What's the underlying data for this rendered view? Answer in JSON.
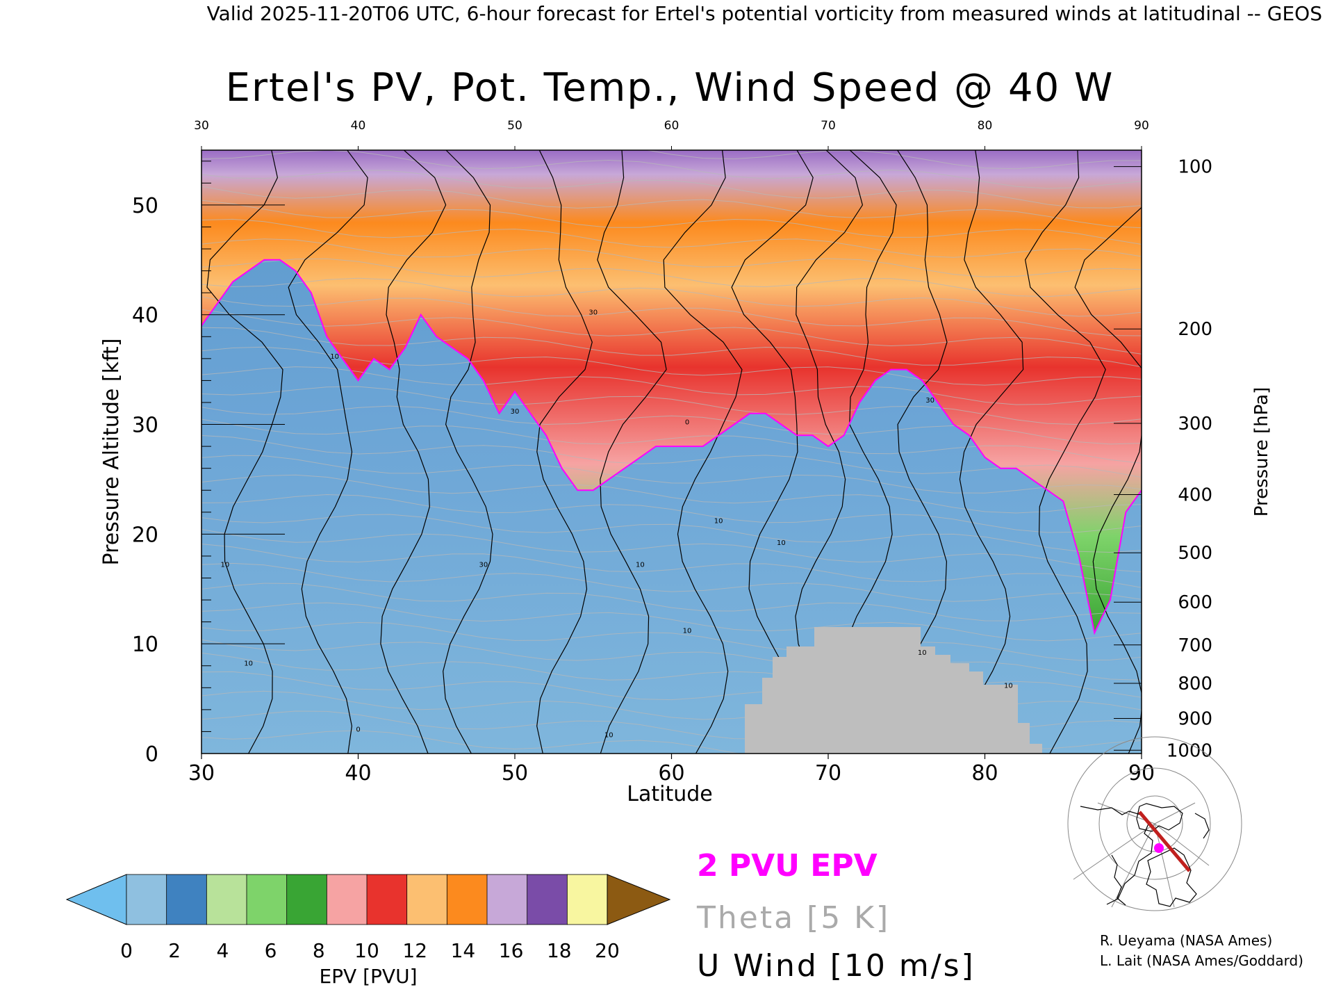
{
  "header": {
    "valid_line": "Valid 2025-11-20T06 UTC, 6-hour forecast for Ertel's potential vorticity from measured winds at latitudinal -- GEOS"
  },
  "chart_data": {
    "type": "heatmap",
    "title": "Ertel's PV, Pot. Temp., Wind Speed @ 40 W",
    "xlabel": "Latitude",
    "ylabel_left": "Pressure Altitude [kft]",
    "ylabel_right": "Pressure [hPa]",
    "xlim": [
      30,
      90
    ],
    "ylim": [
      0,
      55
    ],
    "x_ticks": [
      "30",
      "40",
      "50",
      "60",
      "70",
      "80",
      "90"
    ],
    "x_ticks_top": [
      "30",
      "40",
      "50",
      "60",
      "70",
      "80",
      "90"
    ],
    "y_ticks_left": [
      "0",
      "10",
      "20",
      "30",
      "40",
      "50"
    ],
    "y_ticks_right": [
      {
        "label": "100",
        "kft": 53.5
      },
      {
        "label": "200",
        "kft": 38.7
      },
      {
        "label": "300",
        "kft": 30.1
      },
      {
        "label": "400",
        "kft": 23.6
      },
      {
        "label": "500",
        "kft": 18.3
      },
      {
        "label": "600",
        "kft": 13.8
      },
      {
        "label": "700",
        "kft": 9.9
      },
      {
        "label": "800",
        "kft": 6.4
      },
      {
        "label": "900",
        "kft": 3.2
      },
      {
        "label": "1000",
        "kft": 0.3
      }
    ],
    "tropopause_2pvu_kft": {
      "lat": [
        30,
        31,
        32,
        33,
        34,
        35,
        36,
        37,
        38,
        39,
        40,
        41,
        42,
        43,
        44,
        45,
        46,
        47,
        48,
        49,
        50,
        51,
        52,
        53,
        54,
        55,
        56,
        57,
        58,
        59,
        60,
        61,
        62,
        63,
        64,
        65,
        66,
        67,
        68,
        69,
        70,
        71,
        72,
        73,
        74,
        75,
        76,
        77,
        78,
        79,
        80,
        81,
        82,
        83,
        84,
        85,
        86,
        87,
        88,
        89,
        90
      ],
      "kft": [
        39,
        41,
        43,
        44,
        45,
        45,
        44,
        42,
        38,
        36,
        34,
        36,
        35,
        37,
        40,
        38,
        37,
        36,
        34,
        31,
        33,
        31,
        29,
        26,
        24,
        24,
        25,
        26,
        27,
        28,
        28,
        28,
        28,
        29,
        30,
        31,
        31,
        30,
        29,
        29,
        28,
        29,
        32,
        34,
        35,
        35,
        34,
        32,
        30,
        29,
        27,
        26,
        26,
        25,
        24,
        23,
        18,
        11,
        14,
        22,
        24
      ]
    },
    "wind_contour_labels": [
      "10",
      "0",
      "10",
      "30",
      "30",
      "30",
      "10",
      "10",
      "10",
      "0",
      "10",
      "10",
      "30",
      "10",
      "10",
      "10"
    ],
    "colorbar": {
      "label": "EPV [PVU]",
      "ticks": [
        "0",
        "2",
        "4",
        "6",
        "8",
        "10",
        "12",
        "14",
        "16",
        "18",
        "20"
      ],
      "colors": [
        "#6fbfee",
        "#8fc0e0",
        "#3f82c0",
        "#b8e29a",
        "#7ed36a",
        "#39a534",
        "#f6a3a3",
        "#e8332d",
        "#fcbf71",
        "#fc8a1e",
        "#c7a8d8",
        "#7a4ca8",
        "#f8f6a0",
        "#8c5a12"
      ]
    },
    "legend": [
      {
        "label": "2 PVU EPV",
        "color": "#ff00ff"
      },
      {
        "label": "Theta [5 K]",
        "color": "#aaaaaa"
      },
      {
        "label": "U Wind [10 m/s]",
        "color": "#000000"
      }
    ]
  },
  "credits": {
    "line1": "R. Ueyama (NASA Ames)",
    "line2": "L. Lait (NASA Ames/Goddard)"
  }
}
